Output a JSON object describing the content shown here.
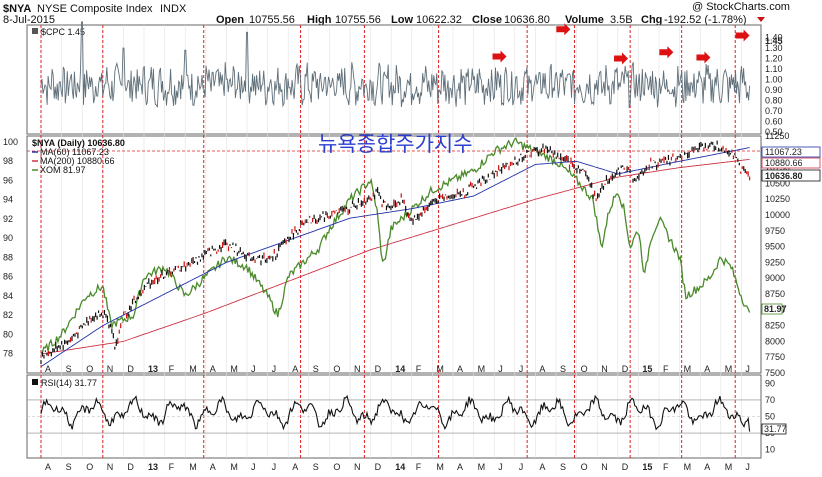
{
  "header": {
    "symbol": "$NYA",
    "name": "NYSE Composite Index",
    "exchange": "INDX",
    "date": "8-Jul-2015",
    "open_label": "Open",
    "open": "10755.56",
    "high_label": "High",
    "high": "10755.56",
    "low_label": "Low",
    "low": "10622.32",
    "close_label": "Close",
    "close": "10636.80",
    "volume_label": "Volume",
    "volume": "3.5B",
    "chg_label": "Chg",
    "chg": "-192.52 (-1.78%)",
    "credit": "@ StockCharts.com"
  },
  "overlay_title": "뉴욕종합주가지수",
  "colors": {
    "price": "#111111",
    "ma60": "#2233aa",
    "ma200": "#cc3344",
    "xom": "#4a8a2a",
    "cpc": "#60707a",
    "rsi": "#111111",
    "vline": "#dd2222",
    "arrow": "#dd1111",
    "title": "#2a3fd0"
  },
  "months": [
    "A",
    "S",
    "O",
    "N",
    "D",
    "13",
    "F",
    "M",
    "A",
    "M",
    "J",
    "J",
    "A",
    "S",
    "O",
    "N",
    "D",
    "14",
    "F",
    "M",
    "A",
    "M",
    "J",
    "J",
    "A",
    "S",
    "O",
    "N",
    "D",
    "15",
    "F",
    "M",
    "A",
    "M",
    "J"
  ],
  "chart_data": [
    {
      "type": "line",
      "title": "$CPC 1.45",
      "series": [
        {
          "name": "$CPC",
          "last": 1.45
        }
      ],
      "yticks": [
        0.5,
        0.6,
        0.7,
        0.8,
        0.9,
        1.0,
        1.1,
        1.2,
        1.3,
        1.4
      ],
      "ylim": [
        0.48,
        1.52
      ],
      "last_label": "1.45",
      "annotations": "red arrows marking put/call spikes",
      "arrow_months": [
        "S",
        "O",
        "F",
        "M",
        "A",
        "J"
      ],
      "spikes": [
        {
          "month": "D",
          "value": 1.35
        },
        {
          "month": "J",
          "value": 1.25
        },
        {
          "month": "M",
          "value": 1.3
        },
        {
          "month": "O",
          "value": 1.55
        },
        {
          "month": "D",
          "value": 1.3
        },
        {
          "month": "M",
          "value": 1.28
        },
        {
          "month": "J",
          "value": 1.45
        }
      ]
    },
    {
      "type": "line",
      "title": "$NYA (Daily) 10636.80",
      "ylim": [
        7500,
        11250
      ],
      "yticks_right": [
        7500,
        7750,
        8000,
        8250,
        8500,
        8750,
        9000,
        9250,
        9500,
        9750,
        10000,
        10250,
        10500,
        10750,
        11000,
        11250
      ],
      "left_axis": {
        "label": "XOM",
        "ylim": [
          76,
          100.6
        ],
        "yticks": [
          78,
          80,
          82,
          84,
          86,
          88,
          90,
          92,
          94,
          96,
          98,
          100
        ]
      },
      "series": [
        {
          "name": "$NYA (Daily)",
          "legend": "$NYA (Daily) 10636.80",
          "axis": "right",
          "keypoints": [
            [
              0,
              7750
            ],
            [
              1.5,
              8050
            ],
            [
              2.5,
              8400
            ],
            [
              3.2,
              8450
            ],
            [
              3.6,
              7900
            ],
            [
              4,
              8400
            ],
            [
              5.3,
              8950
            ],
            [
              7,
              9200
            ],
            [
              9,
              9550
            ],
            [
              10,
              9350
            ],
            [
              11.2,
              9300
            ],
            [
              12,
              9650
            ],
            [
              13,
              9900
            ],
            [
              14,
              10000
            ],
            [
              15,
              10100
            ],
            [
              16.3,
              10350
            ],
            [
              16.8,
              10100
            ],
            [
              17.5,
              10250
            ],
            [
              18,
              9900
            ],
            [
              19.2,
              10250
            ],
            [
              20.5,
              10350
            ],
            [
              22,
              10650
            ],
            [
              23.5,
              10950
            ],
            [
              24.5,
              11050
            ],
            [
              25.5,
              10850
            ],
            [
              26.5,
              10650
            ],
            [
              26.9,
              10250
            ],
            [
              27.4,
              10550
            ],
            [
              28.3,
              10750
            ],
            [
              29,
              10550
            ],
            [
              29.5,
              10800
            ],
            [
              30.5,
              10850
            ],
            [
              31.5,
              11000
            ],
            [
              32.5,
              11100
            ],
            [
              33.5,
              11000
            ],
            [
              34,
              10700
            ],
            [
              34.4,
              10640
            ]
          ]
        },
        {
          "name": "MA(60)",
          "legend": "MA(60) 11067.23",
          "axis": "right",
          "last": 11067.23,
          "keypoints": [
            [
              0,
              7600
            ],
            [
              3,
              8250
            ],
            [
              6,
              8750
            ],
            [
              9,
              9250
            ],
            [
              12,
              9600
            ],
            [
              15,
              9950
            ],
            [
              18,
              10100
            ],
            [
              21,
              10300
            ],
            [
              24,
              10800
            ],
            [
              26,
              10850
            ],
            [
              28,
              10650
            ],
            [
              31,
              10850
            ],
            [
              34.4,
              11067
            ]
          ]
        },
        {
          "name": "MA(200)",
          "legend": "MA(200) 10880.66",
          "axis": "right",
          "last": 10880.66,
          "keypoints": [
            [
              0,
              7800
            ],
            [
              4,
              8000
            ],
            [
              8,
              8450
            ],
            [
              12,
              8950
            ],
            [
              16,
              9450
            ],
            [
              20,
              9850
            ],
            [
              24,
              10250
            ],
            [
              28,
              10600
            ],
            [
              31,
              10750
            ],
            [
              34.4,
              10880
            ]
          ]
        },
        {
          "name": "XOM",
          "legend": "XOM 81.97",
          "axis": "left",
          "last": 81.97,
          "keypoints": [
            [
              0,
              78
            ],
            [
              1,
              80
            ],
            [
              2.2,
              84
            ],
            [
              3,
              85
            ],
            [
              3.4,
              81
            ],
            [
              4.5,
              82
            ],
            [
              5,
              86
            ],
            [
              6,
              87
            ],
            [
              7,
              84
            ],
            [
              8,
              86
            ],
            [
              9,
              88
            ],
            [
              10,
              87
            ],
            [
              11,
              84
            ],
            [
              11.5,
              82
            ],
            [
              12,
              86
            ],
            [
              13.5,
              89
            ],
            [
              14,
              91
            ],
            [
              15,
              94
            ],
            [
              16,
              96
            ],
            [
              16.3,
              93
            ],
            [
              16.6,
              87
            ],
            [
              17,
              91
            ],
            [
              18,
              93
            ],
            [
              19,
              95
            ],
            [
              20,
              96
            ],
            [
              21,
              97
            ],
            [
              22,
              99
            ],
            [
              23,
              100
            ],
            [
              24,
              99
            ],
            [
              25,
              98
            ],
            [
              26,
              96
            ],
            [
              26.8,
              94
            ],
            [
              27.2,
              89
            ],
            [
              27.6,
              93
            ],
            [
              28,
              95
            ],
            [
              28.3,
              93
            ],
            [
              28.6,
              89
            ],
            [
              29,
              91
            ],
            [
              29.3,
              86
            ],
            [
              29.6,
              90
            ],
            [
              30,
              92
            ],
            [
              30.5,
              90
            ],
            [
              31,
              88
            ],
            [
              31.3,
              84
            ],
            [
              32,
              85
            ],
            [
              32.5,
              86
            ],
            [
              33,
              88
            ],
            [
              33.5,
              87
            ],
            [
              34,
              84
            ],
            [
              34.4,
              82
            ]
          ]
        }
      ],
      "price_label": "10636.80",
      "ma60_label": "11067.23",
      "ma200_label": "10880.66",
      "xom_label": "81.97"
    },
    {
      "type": "line",
      "title": "RSI(14) 31.77",
      "ylim": [
        0,
        100
      ],
      "yticks": [
        10,
        30,
        50,
        70,
        90
      ],
      "series": [
        {
          "name": "RSI(14)",
          "last": 31.77
        }
      ],
      "last_label": "31.77"
    }
  ]
}
